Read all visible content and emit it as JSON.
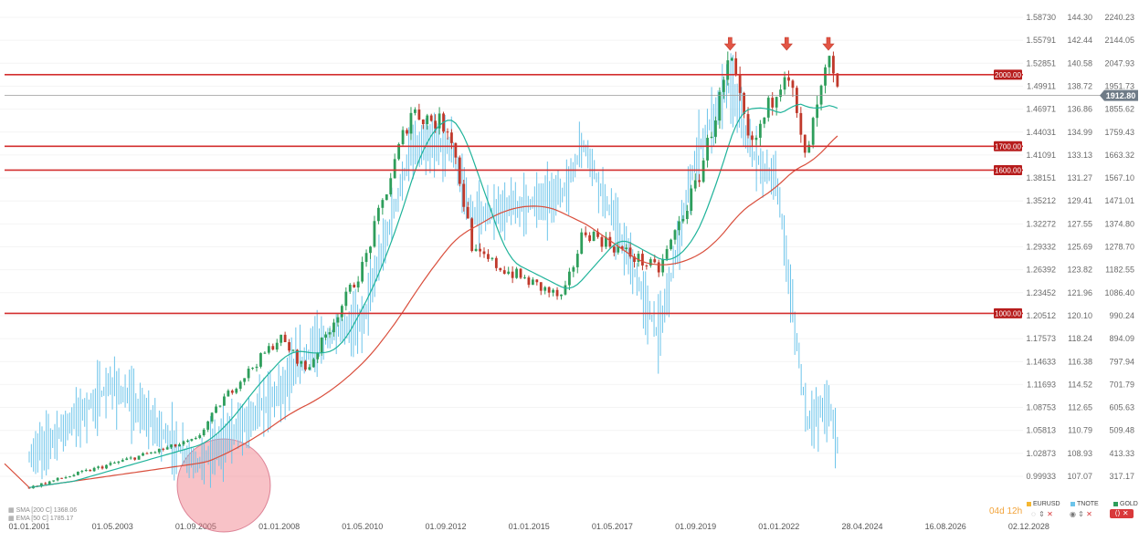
{
  "chart_data": {
    "type": "candlestick",
    "x_ticks": [
      "01.01.2001",
      "01.05.2003",
      "01.09.2005",
      "01.01.2008",
      "01.05.2010",
      "01.09.2012",
      "01.01.2015",
      "01.05.2017",
      "01.09.2019",
      "01.01.2022",
      "28.04.2024",
      "16.08.2026",
      "02.12.2028"
    ],
    "axis_gold": [
      "2240.23",
      "2144.05",
      "2047.93",
      "1951.73",
      "1855.62",
      "1759.43",
      "1663.32",
      "1567.10",
      "1471.01",
      "1374.80",
      "1278.70",
      "1182.55",
      "1086.40",
      "990.24",
      "894.09",
      "797.94",
      "701.79",
      "605.63",
      "509.48",
      "413.33",
      "317.17"
    ],
    "axis_tnote": [
      "144.30",
      "142.44",
      "140.58",
      "138.72",
      "136.86",
      "134.99",
      "133.13",
      "131.27",
      "129.41",
      "127.55",
      "125.69",
      "123.82",
      "121.96",
      "120.10",
      "118.24",
      "116.38",
      "114.52",
      "112.65",
      "110.79",
      "108.93",
      "107.07"
    ],
    "axis_eurusd": [
      "1.58730",
      "1.55791",
      "1.52851",
      "1.49911",
      "1.46971",
      "1.44031",
      "1.41091",
      "1.38151",
      "1.35212",
      "1.32272",
      "1.29332",
      "1.26392",
      "1.23452",
      "1.20512",
      "1.17573",
      "1.14633",
      "1.11693",
      "1.08753",
      "1.05813",
      "1.02873",
      "0.99933"
    ],
    "y_range_gold": [
      317.17,
      2240.23
    ],
    "levels": [
      "2000.00",
      "1700.00",
      "1600.00",
      "1000.00"
    ],
    "current_price": "1912.80",
    "series": [
      {
        "name": "GOLD",
        "color": "#2e9e5b",
        "anchors": [
          [
            "2001-01-01",
            270
          ],
          [
            "2003-05-01",
            370
          ],
          [
            "2005-09-01",
            470
          ],
          [
            "2006-06-01",
            640
          ],
          [
            "2008-01-01",
            900
          ],
          [
            "2008-10-01",
            760
          ],
          [
            "2010-05-01",
            1200
          ],
          [
            "2011-09-01",
            1850
          ],
          [
            "2012-10-01",
            1780
          ],
          [
            "2013-06-01",
            1250
          ],
          [
            "2015-12-01",
            1060
          ],
          [
            "2016-07-01",
            1350
          ],
          [
            "2018-08-01",
            1180
          ],
          [
            "2019-09-01",
            1550
          ],
          [
            "2020-08-01",
            2060
          ],
          [
            "2021-03-01",
            1680
          ],
          [
            "2022-03-01",
            2050
          ],
          [
            "2022-09-01",
            1640
          ],
          [
            "2023-05-01",
            2050
          ],
          [
            "2023-08-01",
            1920
          ]
        ]
      },
      {
        "name": "TNOTE",
        "color": "#6cc4ea",
        "anchors": [
          [
            "2001-01-01",
            108.5
          ],
          [
            "2003-05-01",
            114.5
          ],
          [
            "2005-09-01",
            108.0
          ],
          [
            "2008-01-01",
            114.0
          ],
          [
            "2008-12-01",
            117.5
          ],
          [
            "2010-05-01",
            119.8
          ],
          [
            "2011-09-01",
            133.5
          ],
          [
            "2012-10-01",
            134.0
          ],
          [
            "2013-06-01",
            128.0
          ],
          [
            "2015-12-01",
            130.0
          ],
          [
            "2016-07-01",
            134.0
          ],
          [
            "2018-08-01",
            118.5
          ],
          [
            "2019-09-01",
            133.5
          ],
          [
            "2020-08-01",
            138.9
          ],
          [
            "2021-03-01",
            133.5
          ],
          [
            "2021-12-01",
            130.5
          ],
          [
            "2022-06-01",
            118.5
          ],
          [
            "2022-10-01",
            111.5
          ],
          [
            "2023-05-01",
            113.0
          ],
          [
            "2023-08-01",
            109.8
          ]
        ]
      }
    ],
    "indicators": [
      {
        "name": "SMA",
        "label": "SMA [200 C] 1368.06",
        "color": "#d94f3d"
      },
      {
        "name": "EMA",
        "label": "EMA [50 C] 1785.17",
        "color": "#1fb39a"
      }
    ],
    "annotations": [
      "down-arrow-2020-08",
      "down-arrow-2022-03",
      "down-arrow-2023-05",
      "highlight-circle-2006"
    ]
  },
  "legend": {
    "sma_label": "SMA [200 C] 1368.06",
    "ema_label": "EMA [50 C] 1785.17"
  },
  "series_legend": [
    {
      "name": "EURUSD",
      "color": "#f5b731"
    },
    {
      "name": "TNOTE",
      "color": "#6cc4ea"
    },
    {
      "name": "GOLD",
      "color": "#2e9e5b"
    }
  ],
  "timer": "04d 12h"
}
